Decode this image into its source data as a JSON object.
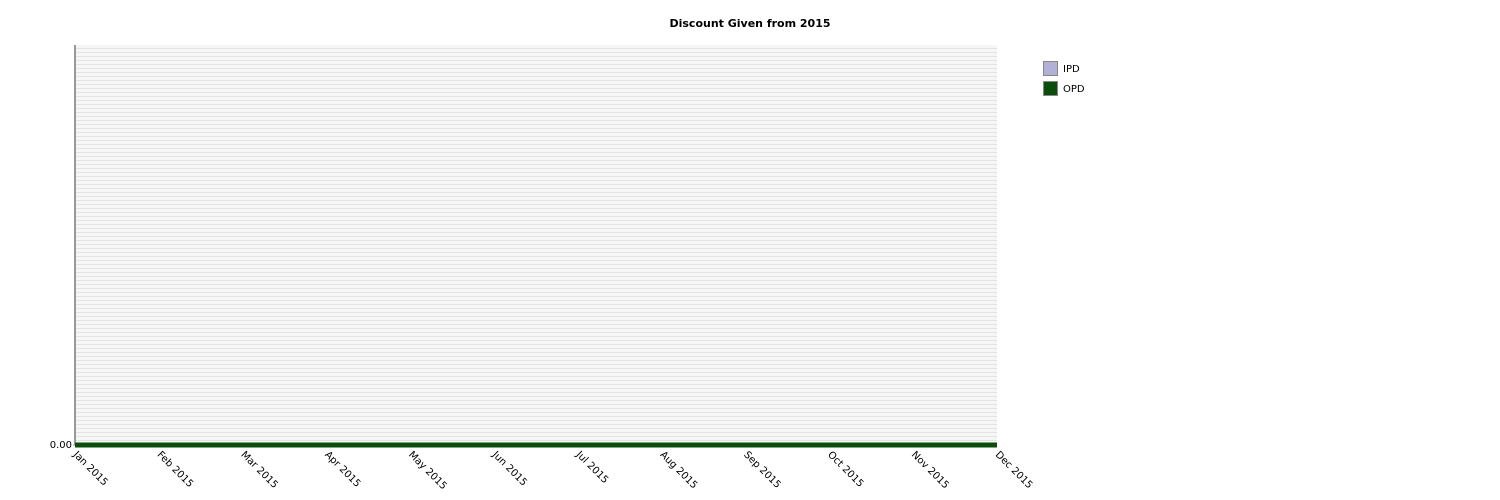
{
  "chart_data": {
    "type": "line",
    "title": "Discount Given from 2015",
    "categories": [
      "Jan 2015",
      "Feb 2015",
      "Mar 2015",
      "Apr 2015",
      "May 2015",
      "Jun 2015",
      "Jul 2015",
      "Aug 2015",
      "Sep 2015",
      "Oct 2015",
      "Nov 2015",
      "Dec 2015"
    ],
    "series": [
      {
        "name": "IPD",
        "color": "#b3b0d6",
        "values": [
          0,
          0,
          0,
          0,
          0,
          0,
          0,
          0,
          0,
          0,
          0,
          0
        ]
      },
      {
        "name": "OPD",
        "color": "#0b4d0b",
        "values": [
          0,
          0,
          0,
          0,
          0,
          0,
          0,
          0,
          0,
          0,
          0,
          0
        ]
      }
    ],
    "ylim": [
      0,
      1
    ],
    "yticks": [
      {
        "value": 0,
        "label": "0.00"
      }
    ],
    "legend": "right"
  }
}
